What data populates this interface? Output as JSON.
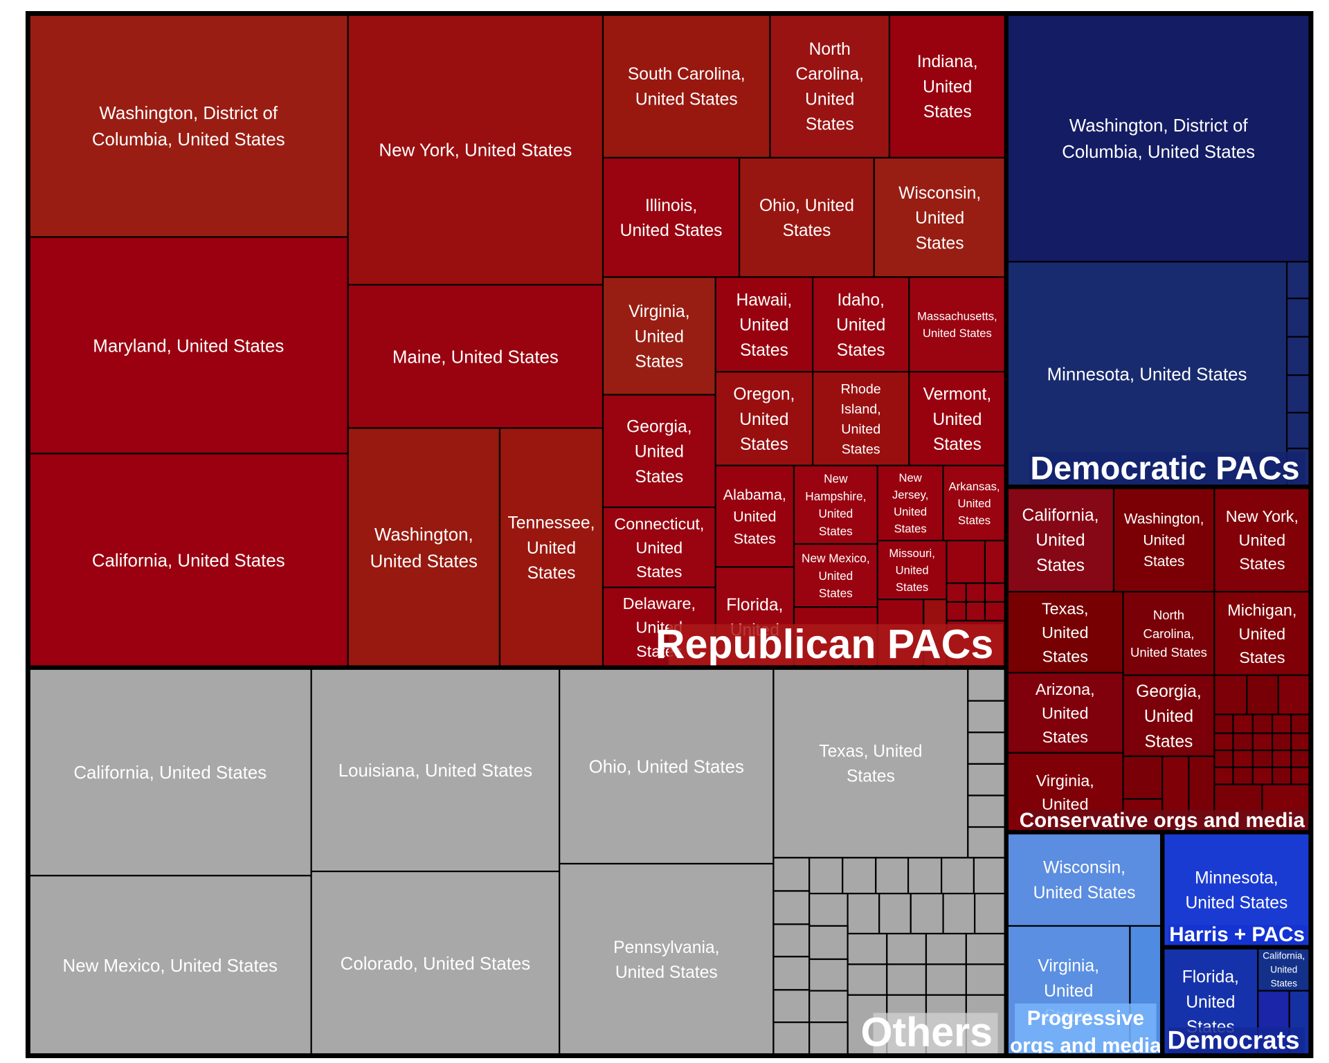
{
  "chart_data": {
    "type": "treemap",
    "colors": {
      "Republican PACs": "#a00e12",
      "Democratic PACs": "#13236a",
      "Others": "#a8a8a8",
      "Conservative orgs and media": "#78070f",
      "Progressive orgs and media": "#5b8fe0",
      "Harris + PACs": "#1a3ccf",
      "Democrats": "#1530a8"
    },
    "groups": [
      {
        "name": "Republican PACs",
        "items": [
          {
            "label": "Washington, District of Columbia, United States",
            "lines": [
              "Washington, District of",
              "Columbia, United States"
            ]
          },
          {
            "label": "Maryland, United States",
            "lines": [
              "Maryland, United States"
            ]
          },
          {
            "label": "California, United States",
            "lines": [
              "California, United States"
            ]
          },
          {
            "label": "New York, United States",
            "lines": [
              "New York, United States"
            ]
          },
          {
            "label": "Maine, United States",
            "lines": [
              "Maine, United States"
            ]
          },
          {
            "label": "Washington, United States",
            "lines": [
              "Washington,",
              "United States"
            ]
          },
          {
            "label": "Tennessee, United States",
            "lines": [
              "Tennessee,",
              "United",
              "States"
            ]
          },
          {
            "label": "South Carolina, United States",
            "lines": [
              "South Carolina,",
              "United States"
            ]
          },
          {
            "label": "North Carolina, United States",
            "lines": [
              "North",
              "Carolina,",
              "United",
              "States"
            ]
          },
          {
            "label": "Indiana, United States",
            "lines": [
              "Indiana,",
              "United",
              "States"
            ]
          },
          {
            "label": "Illinois, United States",
            "lines": [
              "Illinois,",
              "United States"
            ]
          },
          {
            "label": "Ohio, United States",
            "lines": [
              "Ohio, United",
              "States"
            ]
          },
          {
            "label": "Wisconsin, United States",
            "lines": [
              "Wisconsin,",
              "United",
              "States"
            ]
          },
          {
            "label": "Virginia, United States",
            "lines": [
              "Virginia,",
              "United",
              "States"
            ]
          },
          {
            "label": "Hawaii, United States",
            "lines": [
              "Hawaii,",
              "United",
              "States"
            ]
          },
          {
            "label": "Idaho, United States",
            "lines": [
              "Idaho,",
              "United",
              "States"
            ]
          },
          {
            "label": "Massachusetts, United States",
            "lines": [
              "Massachusetts,",
              "United States"
            ]
          },
          {
            "label": "Georgia, United States",
            "lines": [
              "Georgia,",
              "United",
              "States"
            ]
          },
          {
            "label": "Oregon, United States",
            "lines": [
              "Oregon,",
              "United",
              "States"
            ]
          },
          {
            "label": "Rhode Island, United States",
            "lines": [
              "Rhode",
              "Island,",
              "United",
              "States"
            ]
          },
          {
            "label": "Vermont, United States",
            "lines": [
              "Vermont,",
              "United",
              "States"
            ]
          },
          {
            "label": "Connecticut, United States",
            "lines": [
              "Connecticut,",
              "United",
              "States"
            ]
          },
          {
            "label": "Alabama, United States",
            "lines": [
              "Alabama,",
              "United",
              "States"
            ]
          },
          {
            "label": "New Hampshire, United States",
            "lines": [
              "New",
              "Hampshire,",
              "United",
              "States"
            ]
          },
          {
            "label": "New Jersey, United States",
            "lines": [
              "New",
              "Jersey,",
              "United",
              "States"
            ]
          },
          {
            "label": "Arkansas, United States",
            "lines": [
              "Arkansas,",
              "United",
              "States"
            ]
          },
          {
            "label": "New Mexico, United States",
            "lines": [
              "New Mexico,",
              "United",
              "States"
            ]
          },
          {
            "label": "Missouri, United States",
            "lines": [
              "Missouri,",
              "United",
              "States"
            ]
          },
          {
            "label": "Delaware, United States",
            "lines": [
              "Delaware,",
              "United",
              "States"
            ]
          },
          {
            "label": "Florida, United States",
            "lines": [
              "Florida,",
              "United"
            ]
          }
        ]
      },
      {
        "name": "Democratic PACs",
        "items": [
          {
            "label": "Washington, District of Columbia, United States",
            "lines": [
              "Washington, District of",
              "Columbia, United States"
            ]
          },
          {
            "label": "Minnesota, United States",
            "lines": [
              "Minnesota, United States"
            ]
          }
        ]
      },
      {
        "name": "Others",
        "items": [
          {
            "label": "California, United States",
            "lines": [
              "California, United States"
            ]
          },
          {
            "label": "New Mexico, United States",
            "lines": [
              "New Mexico, United States"
            ]
          },
          {
            "label": "Louisiana, United States",
            "lines": [
              "Louisiana, United States"
            ]
          },
          {
            "label": "Colorado, United States",
            "lines": [
              "Colorado, United States"
            ]
          },
          {
            "label": "Ohio, United States",
            "lines": [
              "Ohio, United States"
            ]
          },
          {
            "label": "Pennsylvania, United States",
            "lines": [
              "Pennsylvania,",
              "United States"
            ]
          },
          {
            "label": "Texas, United States",
            "lines": [
              "Texas, United",
              "States"
            ]
          }
        ]
      },
      {
        "name": "Conservative orgs and media",
        "items": [
          {
            "label": "California, United States",
            "lines": [
              "California,",
              "United",
              "States"
            ]
          },
          {
            "label": "Washington, United States",
            "lines": [
              "Washington,",
              "United",
              "States"
            ]
          },
          {
            "label": "New York, United States",
            "lines": [
              "New York,",
              "United",
              "States"
            ]
          },
          {
            "label": "Texas, United States",
            "lines": [
              "Texas,",
              "United",
              "States"
            ]
          },
          {
            "label": "North Carolina, United States",
            "lines": [
              "North",
              "Carolina,",
              "United States"
            ]
          },
          {
            "label": "Michigan, United States",
            "lines": [
              "Michigan,",
              "United",
              "States"
            ]
          },
          {
            "label": "Arizona, United States",
            "lines": [
              "Arizona,",
              "United",
              "States"
            ]
          },
          {
            "label": "Georgia, United States",
            "lines": [
              "Georgia,",
              "United",
              "States"
            ]
          },
          {
            "label": "Virginia, United States",
            "lines": [
              "Virginia,",
              "United"
            ]
          }
        ]
      },
      {
        "name": "Progressive orgs and media",
        "title_lines": [
          "Progressive",
          "orgs and media"
        ],
        "items": [
          {
            "label": "Wisconsin, United States",
            "lines": [
              "Wisconsin,",
              "United States"
            ]
          },
          {
            "label": "Virginia, United States",
            "lines": [
              "Virginia,",
              "United",
              "States"
            ]
          }
        ]
      },
      {
        "name": "Harris + PACs",
        "items": [
          {
            "label": "Minnesota, United States",
            "lines": [
              "Minnesota,",
              "United States"
            ]
          }
        ]
      },
      {
        "name": "Democrats",
        "items": [
          {
            "label": "Florida, United States",
            "lines": [
              "Florida,",
              "United",
              "States"
            ]
          },
          {
            "label": "California, United States",
            "lines": [
              "California,",
              "United",
              "States"
            ]
          }
        ]
      }
    ]
  }
}
